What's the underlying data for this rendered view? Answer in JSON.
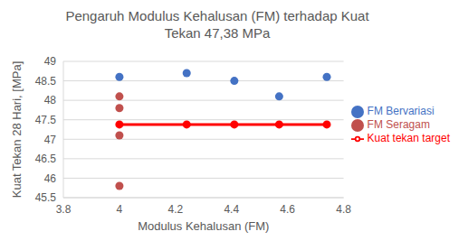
{
  "chart_data": {
    "type": "scatter",
    "title": "Pengaruh Modulus Kehalusan (FM) terhadap Kuat Tekan 47,38 MPa",
    "x_label": "Modulus Kehalusan (FM)",
    "y_label": "Kuat Tekan 28 Hari, [MPa]",
    "xlim": [
      3.8,
      4.8
    ],
    "xticks": [
      3.8,
      4,
      4.2,
      4.4,
      4.6,
      4.8
    ],
    "ylim": [
      45.5,
      49
    ],
    "yticks": [
      45.5,
      46,
      46.5,
      47,
      47.5,
      48,
      48.5,
      49
    ],
    "grid": true,
    "legend": "right",
    "series": [
      {
        "name": "Kuat tekan target",
        "type": "line",
        "marker": "circle",
        "color": "#ff0000",
        "x": [
          4,
          4.24,
          4.41,
          4.57,
          4.74
        ],
        "values": [
          47.38,
          47.38,
          47.38,
          47.38,
          47.38
        ]
      },
      {
        "name": "FM Bervariasi",
        "type": "scatter",
        "marker": "circle",
        "color": "#4472c4",
        "x": [
          4,
          4.24,
          4.41,
          4.57,
          4.74
        ],
        "values": [
          48.6,
          48.7,
          48.5,
          48.1,
          48.6
        ]
      },
      {
        "name": "FM Seragam",
        "type": "scatter",
        "marker": "circle",
        "color": "#c0504d",
        "x": [
          4,
          4,
          4,
          4
        ],
        "values": [
          48.1,
          47.8,
          47.1,
          45.8
        ]
      }
    ]
  }
}
